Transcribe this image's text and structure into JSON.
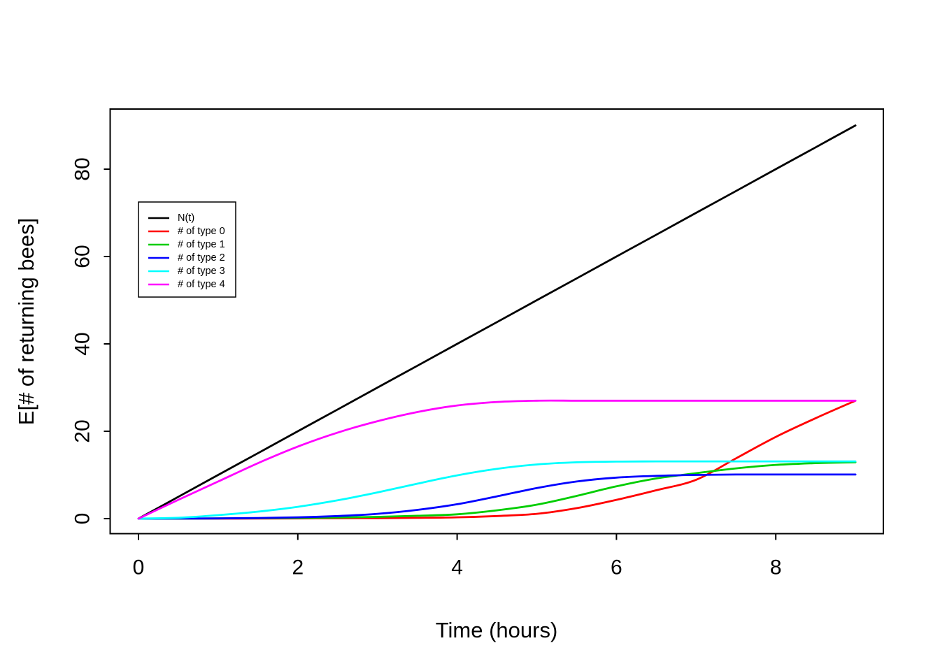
{
  "figure": {
    "background": "#FFFFFF",
    "title": ""
  },
  "chart_data": {
    "type": "line",
    "title": "",
    "xlabel": "Time (hours)",
    "ylabel": "E[# of returning bees]",
    "x_ticks": [
      0,
      2,
      4,
      6,
      8
    ],
    "y_ticks": [
      0,
      20,
      40,
      60,
      80
    ],
    "xlim": [
      -0.37,
      9.37
    ],
    "ylim": [
      -3.6,
      93.6
    ],
    "grid": false,
    "legend_position": "upper-left-inset",
    "x": [
      0,
      0.5,
      1,
      1.5,
      2,
      2.5,
      3,
      3.5,
      4,
      4.5,
      5,
      5.5,
      6,
      6.5,
      7,
      7.5,
      8,
      8.5,
      9
    ],
    "series": [
      {
        "name": "N(t)",
        "color": "#000000",
        "values": [
          0,
          5,
          10,
          15,
          20,
          25,
          30,
          35,
          40,
          45,
          50,
          55,
          60,
          65,
          70,
          75,
          80,
          85,
          90
        ]
      },
      {
        "name": "# of type 0",
        "color": "#FF0000",
        "values": [
          0,
          0,
          0,
          0.02,
          0.05,
          0.08,
          0.12,
          0.18,
          0.3,
          0.6,
          1.1,
          2.4,
          4.3,
          6.5,
          8.9,
          13.8,
          18.7,
          23,
          27
        ]
      },
      {
        "name": "# of type 1",
        "color": "#00CD00",
        "values": [
          0,
          0,
          0.05,
          0.1,
          0.15,
          0.25,
          0.4,
          0.65,
          1,
          1.9,
          3.2,
          5.2,
          7.4,
          9.2,
          10.4,
          11.5,
          12.3,
          12.7,
          12.9
        ]
      },
      {
        "name": "# of type 2",
        "color": "#0000FF",
        "values": [
          0,
          0.02,
          0.05,
          0.15,
          0.3,
          0.6,
          1.1,
          2,
          3.3,
          5.1,
          7,
          8.5,
          9.4,
          9.8,
          10,
          10.1,
          10.1,
          10.1,
          10.1
        ]
      },
      {
        "name": "# of type 3",
        "color": "#00FFFF",
        "values": [
          0,
          0.2,
          0.8,
          1.6,
          2.7,
          4.2,
          6,
          8,
          9.9,
          11.4,
          12.4,
          12.9,
          13.05,
          13.1,
          13.1,
          13.1,
          13.1,
          13.1,
          13.1
        ]
      },
      {
        "name": "# of type 4",
        "color": "#FF00FF",
        "values": [
          0,
          4.3,
          8.5,
          12.7,
          16.5,
          19.7,
          22.3,
          24.4,
          25.9,
          26.7,
          27,
          27,
          27,
          27,
          27,
          27,
          27,
          27,
          27
        ]
      }
    ]
  }
}
